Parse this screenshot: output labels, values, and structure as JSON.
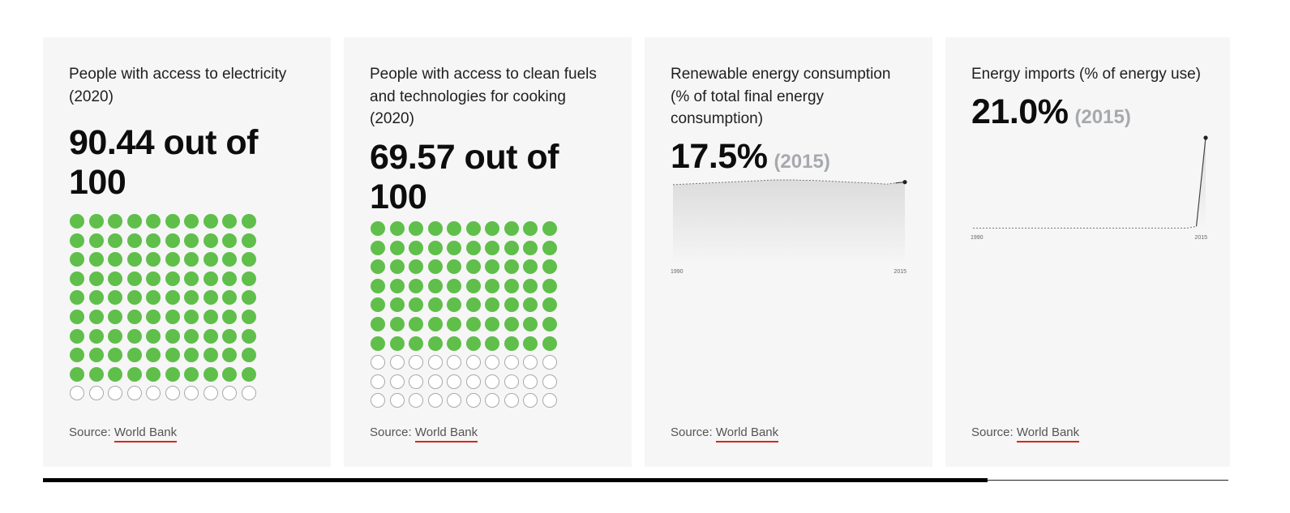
{
  "cards": [
    {
      "title": "People with access to electricity (2020)",
      "value": "90.44 out of 100",
      "dots": {
        "filled": 90,
        "total": 100
      },
      "source_label": "Source:",
      "source_link": "World Bank"
    },
    {
      "title": "People with access to clean fuels and technologies for cooking (2020)",
      "value": "69.57 out of 100",
      "dots": {
        "filled": 70,
        "total": 100
      },
      "source_label": "Source:",
      "source_link": "World Bank"
    },
    {
      "title": "Renewable energy consumption (% of total final energy consumption)",
      "value": "17.5%",
      "year": "(2015)",
      "sparkline": {
        "x_start": "1990",
        "x_end": "2015",
        "values": [
          16.9,
          17.0,
          17.1,
          17.2,
          17.3,
          17.4,
          17.5,
          17.6,
          17.7,
          17.8,
          17.9,
          18.0,
          18.0,
          18.0,
          17.9,
          17.9,
          17.8,
          17.7,
          17.6,
          17.5,
          17.4,
          17.3,
          17.2,
          17.0,
          17.3,
          17.5
        ]
      },
      "source_label": "Source:",
      "source_link": "World Bank"
    },
    {
      "title": "Energy imports (% of energy use)",
      "value": "21.0%",
      "year": "(2015)",
      "sparkline": {
        "x_start": "1990",
        "x_end": "2015",
        "values": [
          0.1,
          0.1,
          0.1,
          0.1,
          0.1,
          0.1,
          0.1,
          0.1,
          0.1,
          0.1,
          0.1,
          0.1,
          0.1,
          0.1,
          0.1,
          0.1,
          0.1,
          0.1,
          0.1,
          0.1,
          0.1,
          0.1,
          0.1,
          0.1,
          0.5,
          21.0
        ]
      },
      "source_label": "Source:",
      "source_link": "World Bank"
    }
  ],
  "progress": {
    "fraction": 0.797
  },
  "colors": {
    "dot_filled": "#5fbf4a",
    "source_underline": "#d9261c",
    "card_background": "#f6f6f6",
    "year_gray": "#a7a9ad"
  }
}
